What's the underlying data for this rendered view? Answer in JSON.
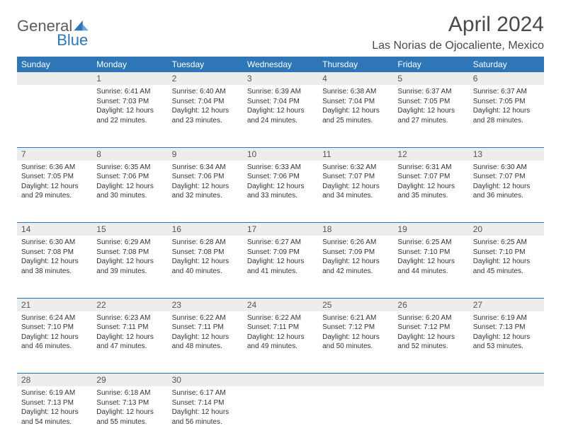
{
  "logo": {
    "part1": "General",
    "part2": "Blue"
  },
  "title": "April 2024",
  "location": "Las Norias de Ojocaliente, Mexico",
  "colors": {
    "header_bg": "#2e76b6",
    "header_text": "#ffffff",
    "daynum_bg": "#ededed",
    "border": "#2e76b6",
    "logo_gray": "#5c5c5c",
    "logo_blue": "#2e76b6"
  },
  "weekdays": [
    "Sunday",
    "Monday",
    "Tuesday",
    "Wednesday",
    "Thursday",
    "Friday",
    "Saturday"
  ],
  "weeks": [
    {
      "nums": [
        "",
        "1",
        "2",
        "3",
        "4",
        "5",
        "6"
      ],
      "cells": [
        null,
        {
          "sunrise": "Sunrise: 6:41 AM",
          "sunset": "Sunset: 7:03 PM",
          "day1": "Daylight: 12 hours",
          "day2": "and 22 minutes."
        },
        {
          "sunrise": "Sunrise: 6:40 AM",
          "sunset": "Sunset: 7:04 PM",
          "day1": "Daylight: 12 hours",
          "day2": "and 23 minutes."
        },
        {
          "sunrise": "Sunrise: 6:39 AM",
          "sunset": "Sunset: 7:04 PM",
          "day1": "Daylight: 12 hours",
          "day2": "and 24 minutes."
        },
        {
          "sunrise": "Sunrise: 6:38 AM",
          "sunset": "Sunset: 7:04 PM",
          "day1": "Daylight: 12 hours",
          "day2": "and 25 minutes."
        },
        {
          "sunrise": "Sunrise: 6:37 AM",
          "sunset": "Sunset: 7:05 PM",
          "day1": "Daylight: 12 hours",
          "day2": "and 27 minutes."
        },
        {
          "sunrise": "Sunrise: 6:37 AM",
          "sunset": "Sunset: 7:05 PM",
          "day1": "Daylight: 12 hours",
          "day2": "and 28 minutes."
        }
      ]
    },
    {
      "nums": [
        "7",
        "8",
        "9",
        "10",
        "11",
        "12",
        "13"
      ],
      "cells": [
        {
          "sunrise": "Sunrise: 6:36 AM",
          "sunset": "Sunset: 7:05 PM",
          "day1": "Daylight: 12 hours",
          "day2": "and 29 minutes."
        },
        {
          "sunrise": "Sunrise: 6:35 AM",
          "sunset": "Sunset: 7:06 PM",
          "day1": "Daylight: 12 hours",
          "day2": "and 30 minutes."
        },
        {
          "sunrise": "Sunrise: 6:34 AM",
          "sunset": "Sunset: 7:06 PM",
          "day1": "Daylight: 12 hours",
          "day2": "and 32 minutes."
        },
        {
          "sunrise": "Sunrise: 6:33 AM",
          "sunset": "Sunset: 7:06 PM",
          "day1": "Daylight: 12 hours",
          "day2": "and 33 minutes."
        },
        {
          "sunrise": "Sunrise: 6:32 AM",
          "sunset": "Sunset: 7:07 PM",
          "day1": "Daylight: 12 hours",
          "day2": "and 34 minutes."
        },
        {
          "sunrise": "Sunrise: 6:31 AM",
          "sunset": "Sunset: 7:07 PM",
          "day1": "Daylight: 12 hours",
          "day2": "and 35 minutes."
        },
        {
          "sunrise": "Sunrise: 6:30 AM",
          "sunset": "Sunset: 7:07 PM",
          "day1": "Daylight: 12 hours",
          "day2": "and 36 minutes."
        }
      ]
    },
    {
      "nums": [
        "14",
        "15",
        "16",
        "17",
        "18",
        "19",
        "20"
      ],
      "cells": [
        {
          "sunrise": "Sunrise: 6:30 AM",
          "sunset": "Sunset: 7:08 PM",
          "day1": "Daylight: 12 hours",
          "day2": "and 38 minutes."
        },
        {
          "sunrise": "Sunrise: 6:29 AM",
          "sunset": "Sunset: 7:08 PM",
          "day1": "Daylight: 12 hours",
          "day2": "and 39 minutes."
        },
        {
          "sunrise": "Sunrise: 6:28 AM",
          "sunset": "Sunset: 7:08 PM",
          "day1": "Daylight: 12 hours",
          "day2": "and 40 minutes."
        },
        {
          "sunrise": "Sunrise: 6:27 AM",
          "sunset": "Sunset: 7:09 PM",
          "day1": "Daylight: 12 hours",
          "day2": "and 41 minutes."
        },
        {
          "sunrise": "Sunrise: 6:26 AM",
          "sunset": "Sunset: 7:09 PM",
          "day1": "Daylight: 12 hours",
          "day2": "and 42 minutes."
        },
        {
          "sunrise": "Sunrise: 6:25 AM",
          "sunset": "Sunset: 7:10 PM",
          "day1": "Daylight: 12 hours",
          "day2": "and 44 minutes."
        },
        {
          "sunrise": "Sunrise: 6:25 AM",
          "sunset": "Sunset: 7:10 PM",
          "day1": "Daylight: 12 hours",
          "day2": "and 45 minutes."
        }
      ]
    },
    {
      "nums": [
        "21",
        "22",
        "23",
        "24",
        "25",
        "26",
        "27"
      ],
      "cells": [
        {
          "sunrise": "Sunrise: 6:24 AM",
          "sunset": "Sunset: 7:10 PM",
          "day1": "Daylight: 12 hours",
          "day2": "and 46 minutes."
        },
        {
          "sunrise": "Sunrise: 6:23 AM",
          "sunset": "Sunset: 7:11 PM",
          "day1": "Daylight: 12 hours",
          "day2": "and 47 minutes."
        },
        {
          "sunrise": "Sunrise: 6:22 AM",
          "sunset": "Sunset: 7:11 PM",
          "day1": "Daylight: 12 hours",
          "day2": "and 48 minutes."
        },
        {
          "sunrise": "Sunrise: 6:22 AM",
          "sunset": "Sunset: 7:11 PM",
          "day1": "Daylight: 12 hours",
          "day2": "and 49 minutes."
        },
        {
          "sunrise": "Sunrise: 6:21 AM",
          "sunset": "Sunset: 7:12 PM",
          "day1": "Daylight: 12 hours",
          "day2": "and 50 minutes."
        },
        {
          "sunrise": "Sunrise: 6:20 AM",
          "sunset": "Sunset: 7:12 PM",
          "day1": "Daylight: 12 hours",
          "day2": "and 52 minutes."
        },
        {
          "sunrise": "Sunrise: 6:19 AM",
          "sunset": "Sunset: 7:13 PM",
          "day1": "Daylight: 12 hours",
          "day2": "and 53 minutes."
        }
      ]
    },
    {
      "nums": [
        "28",
        "29",
        "30",
        "",
        "",
        "",
        ""
      ],
      "cells": [
        {
          "sunrise": "Sunrise: 6:19 AM",
          "sunset": "Sunset: 7:13 PM",
          "day1": "Daylight: 12 hours",
          "day2": "and 54 minutes."
        },
        {
          "sunrise": "Sunrise: 6:18 AM",
          "sunset": "Sunset: 7:13 PM",
          "day1": "Daylight: 12 hours",
          "day2": "and 55 minutes."
        },
        {
          "sunrise": "Sunrise: 6:17 AM",
          "sunset": "Sunset: 7:14 PM",
          "day1": "Daylight: 12 hours",
          "day2": "and 56 minutes."
        },
        null,
        null,
        null,
        null
      ]
    }
  ]
}
